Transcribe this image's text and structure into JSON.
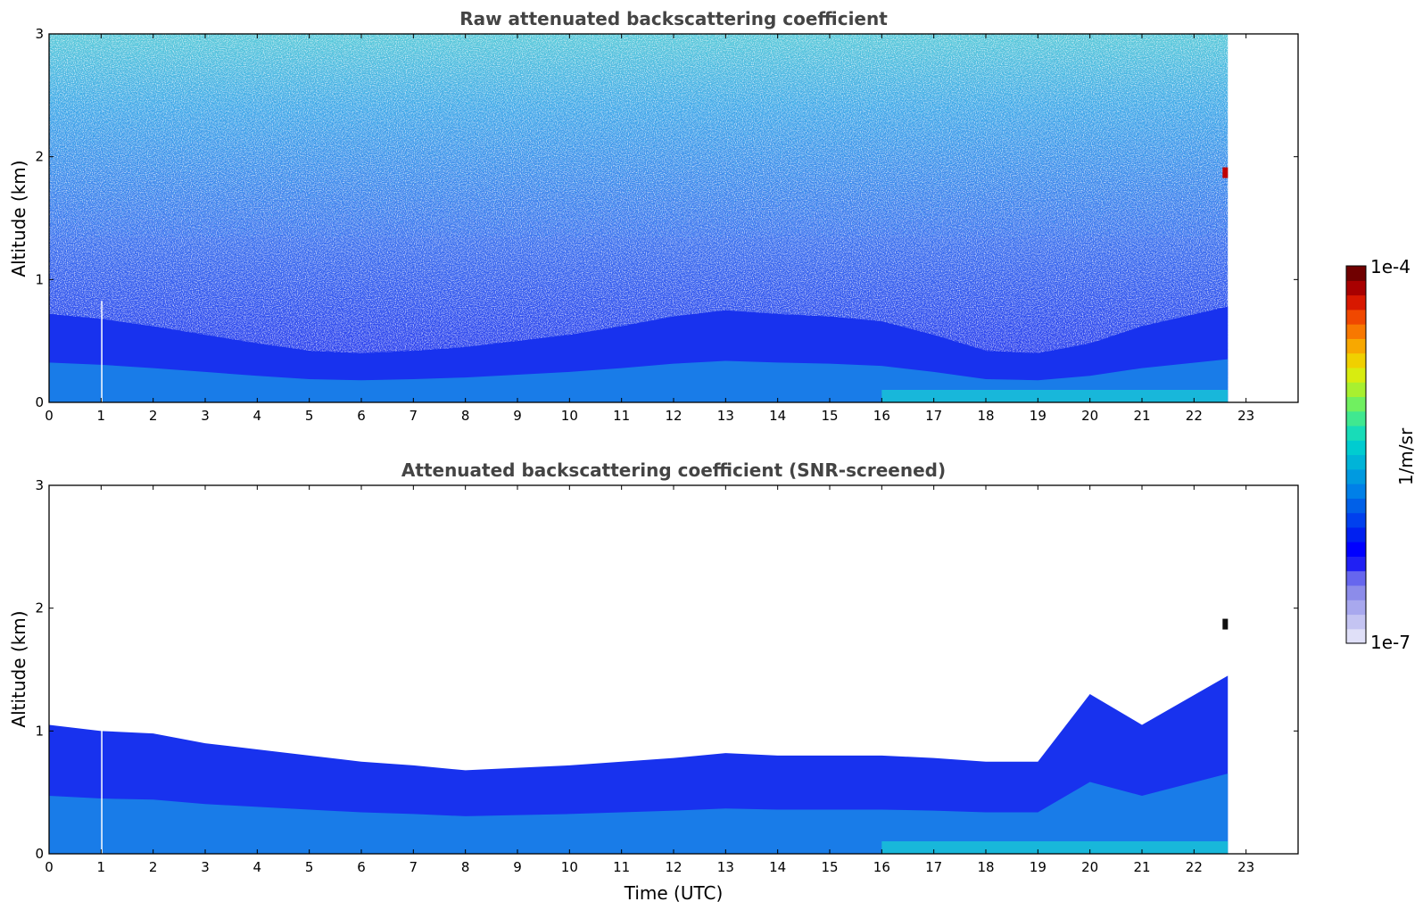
{
  "chart_data": [
    {
      "type": "heatmap",
      "title": "Raw attenuated backscattering coefficient",
      "xlabel": "",
      "ylabel": "Altitude (km)",
      "xlim": [
        0,
        24
      ],
      "ylim": [
        0,
        3
      ],
      "x_ticks": [
        "0",
        "1",
        "2",
        "3",
        "4",
        "5",
        "6",
        "7",
        "8",
        "9",
        "10",
        "11",
        "12",
        "13",
        "14",
        "15",
        "16",
        "17",
        "18",
        "19",
        "20",
        "21",
        "22",
        "23"
      ],
      "y_ticks": [
        "0",
        "1",
        "2",
        "3"
      ],
      "data_time_range": [
        0,
        22.65
      ],
      "x": [
        0,
        1,
        2,
        3,
        4,
        5,
        6,
        7,
        8,
        9,
        10,
        11,
        12,
        13,
        14,
        15,
        16,
        17,
        18,
        19,
        20,
        21,
        22
      ],
      "boundary_layer_top_km": [
        0.72,
        0.68,
        0.62,
        0.55,
        0.48,
        0.42,
        0.4,
        0.42,
        0.45,
        0.5,
        0.55,
        0.62,
        0.7,
        0.75,
        0.72,
        0.7,
        0.66,
        0.55,
        0.42,
        0.4,
        0.48,
        0.62,
        0.78
      ],
      "noise_level": "high",
      "feature": {
        "time": 22.6,
        "altitude_km": 1.87,
        "level": "1e-4"
      }
    },
    {
      "type": "heatmap",
      "title": "Attenuated backscattering coefficient (SNR-screened)",
      "xlabel": "Time (UTC)",
      "ylabel": "Altitude (km)",
      "xlim": [
        0,
        24
      ],
      "ylim": [
        0,
        3
      ],
      "x_ticks": [
        "0",
        "1",
        "2",
        "3",
        "4",
        "5",
        "6",
        "7",
        "8",
        "9",
        "10",
        "11",
        "12",
        "13",
        "14",
        "15",
        "16",
        "17",
        "18",
        "19",
        "20",
        "21",
        "22",
        "23"
      ],
      "y_ticks": [
        "0",
        "1",
        "2",
        "3"
      ],
      "data_time_range": [
        0,
        22.65
      ],
      "x": [
        0,
        1,
        2,
        3,
        4,
        5,
        6,
        7,
        8,
        9,
        10,
        11,
        12,
        13,
        14,
        15,
        16,
        17,
        18,
        19,
        20,
        21,
        22
      ],
      "signal_top_km": [
        1.05,
        1.0,
        0.98,
        0.9,
        0.85,
        0.8,
        0.75,
        0.72,
        0.68,
        0.7,
        0.72,
        0.75,
        0.78,
        0.82,
        0.8,
        0.8,
        0.8,
        0.78,
        0.75,
        0.75,
        1.3,
        1.05,
        1.45
      ],
      "noise_level": "screened",
      "feature": {
        "time": 22.6,
        "altitude_km": 1.87,
        "level": "1e-4"
      }
    }
  ],
  "colorbar": {
    "label": "1/m/sr",
    "max_label": "1e-4",
    "min_label": "1e-7",
    "colors": [
      "#e0e0f8",
      "#c4c4f2",
      "#a8a8ee",
      "#8c8cea",
      "#6666ee",
      "#2020f4",
      "#0000ff",
      "#0020f0",
      "#0040ee",
      "#0060e8",
      "#0080e8",
      "#009ae0",
      "#00b4d8",
      "#00ccd0",
      "#18dcb8",
      "#40e890",
      "#70f060",
      "#a8f030",
      "#d8ec10",
      "#f0d000",
      "#f8a800",
      "#f87800",
      "#f04800",
      "#d81800",
      "#a80000",
      "#700000"
    ]
  }
}
